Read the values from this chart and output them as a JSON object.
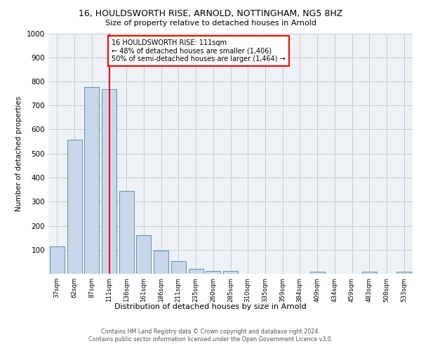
{
  "title1": "16, HOULDSWORTH RISE, ARNOLD, NOTTINGHAM, NG5 8HZ",
  "title2": "Size of property relative to detached houses in Arnold",
  "xlabel": "Distribution of detached houses by size in Arnold",
  "ylabel": "Number of detached properties",
  "bar_labels": [
    "37sqm",
    "62sqm",
    "87sqm",
    "111sqm",
    "136sqm",
    "161sqm",
    "186sqm",
    "211sqm",
    "235sqm",
    "260sqm",
    "285sqm",
    "310sqm",
    "335sqm",
    "359sqm",
    "384sqm",
    "409sqm",
    "434sqm",
    "459sqm",
    "483sqm",
    "508sqm",
    "533sqm"
  ],
  "bar_values": [
    113,
    557,
    778,
    768,
    345,
    161,
    97,
    54,
    20,
    13,
    12,
    0,
    0,
    0,
    0,
    8,
    0,
    0,
    8,
    0,
    8
  ],
  "bar_color": "#c8d8ea",
  "bar_edge_color": "#6090b8",
  "grid_color": "#c0ccd8",
  "vline_x": 3,
  "vline_color": "red",
  "annotation_text": "16 HOULDSWORTH RISE: 111sqm\n← 48% of detached houses are smaller (1,406)\n50% of semi-detached houses are larger (1,464) →",
  "annotation_box_color": "white",
  "annotation_box_edge_color": "red",
  "ylim": [
    0,
    1000
  ],
  "yticks": [
    0,
    100,
    200,
    300,
    400,
    500,
    600,
    700,
    800,
    900,
    1000
  ],
  "footer": "Contains HM Land Registry data © Crown copyright and database right 2024.\nContains public sector information licensed under the Open Government Licence v3.0.",
  "background_color": "#eef2f6",
  "fig_width": 6.0,
  "fig_height": 5.0,
  "dpi": 100
}
